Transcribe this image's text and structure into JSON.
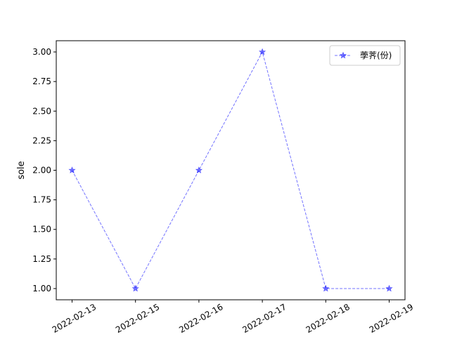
{
  "chart_data": {
    "type": "line",
    "title": "",
    "xlabel": "",
    "ylabel": "sole",
    "categories": [
      "2022-02-13",
      "2022-02-15",
      "2022-02-16",
      "2022-02-17",
      "2022-02-18",
      "2022-02-19"
    ],
    "series": [
      {
        "name": "荸荠(份)",
        "values": [
          2,
          1,
          2,
          3,
          1,
          1
        ],
        "color": "#0000ff",
        "line_style": "dashed",
        "marker": "star",
        "opacity": 0.55
      }
    ],
    "ylim": [
      0.905,
      3.095
    ],
    "yticks": [
      "1.00",
      "1.25",
      "1.50",
      "1.75",
      "2.00",
      "2.25",
      "2.50",
      "2.75",
      "3.00"
    ],
    "grid": false,
    "legend_position": "upper right",
    "xtick_rotation": 30
  }
}
